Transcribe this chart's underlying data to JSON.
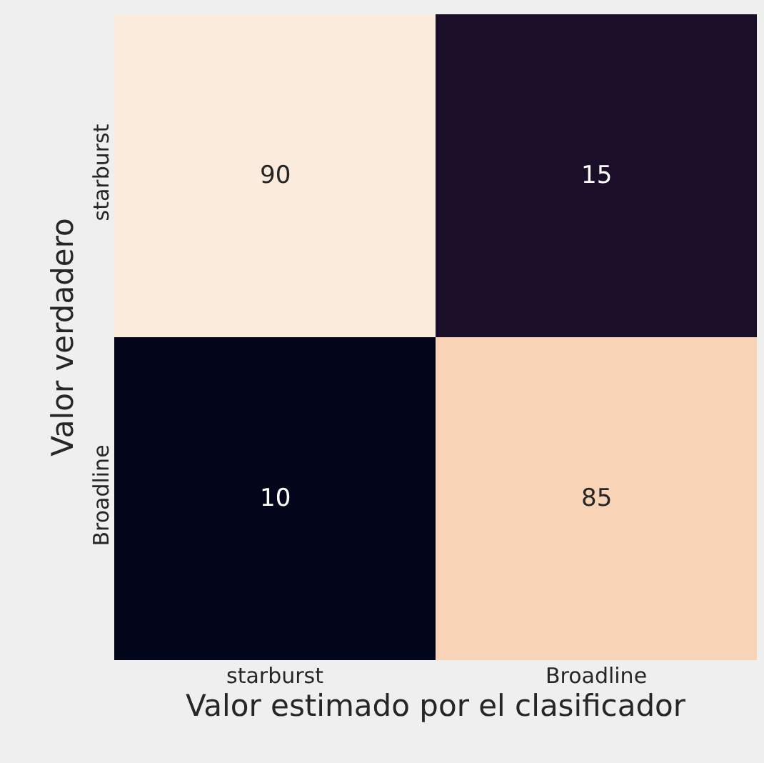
{
  "chart_data": {
    "type": "heatmap",
    "xlabel": "Valor estimado por el clasificador",
    "ylabel": "Valor verdadero",
    "categories": [
      "starburst",
      "Broadline"
    ],
    "y_categories": [
      "starburst",
      "Broadline"
    ],
    "cells": [
      [
        90,
        15
      ],
      [
        10,
        85
      ]
    ],
    "data_labels": true
  }
}
